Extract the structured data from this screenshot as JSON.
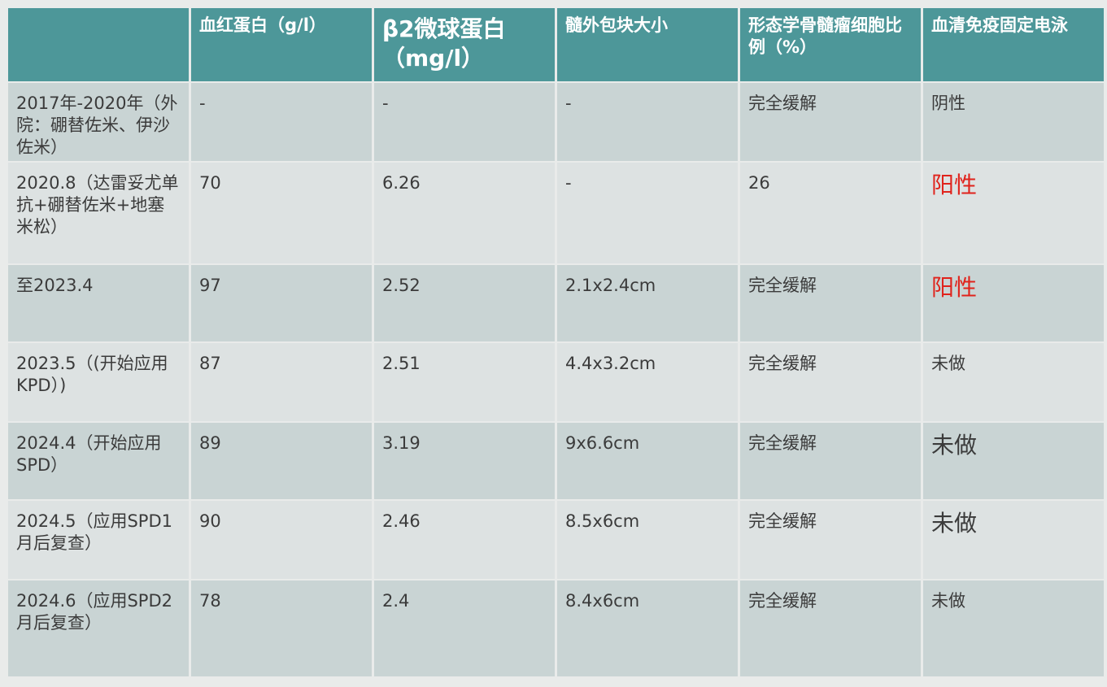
{
  "table": {
    "headers": [
      "",
      "血红蛋白（g/l）",
      "β2微球蛋白（mg/l）",
      "髓外包块大小",
      "形态学骨髓瘤细胞比例（%）",
      "血清免疫固定电泳"
    ],
    "rows": [
      [
        "2017年-2020年（外院：硼替佐米、伊沙佐米）",
        "-",
        "-",
        "-",
        "完全缓解",
        "阴性"
      ],
      [
        "2020.8（达雷妥尤单抗+硼替佐米+地塞米松）",
        "70",
        "6.26",
        "-",
        "26",
        "阳性"
      ],
      [
        "至2023.4",
        "97",
        "2.52",
        "2.1x2.4cm",
        "完全缓解",
        "阳性"
      ],
      [
        "2023.5（(开始应用KPD）)",
        "87",
        "2.51",
        "4.4x3.2cm",
        "完全缓解",
        "未做"
      ],
      [
        "2024.4（开始应用SPD）",
        "89",
        "3.19",
        "9x6.6cm",
        "完全缓解",
        "未做"
      ],
      [
        "2024.5（应用SPD1月后复查）",
        "90",
        "2.46",
        "8.5x6cm",
        "完全缓解",
        "未做"
      ],
      [
        "2024.6（应用SPD2月后复查）",
        "78",
        "2.4",
        "8.4x6cm",
        "完全缓解",
        "未做"
      ]
    ]
  },
  "colors": {
    "header_bg": "#4d9799",
    "header_text": "#ffffff",
    "row_dark": "#c9d4d4",
    "row_light": "#dde2e2",
    "positive_text": "#e0231c"
  }
}
